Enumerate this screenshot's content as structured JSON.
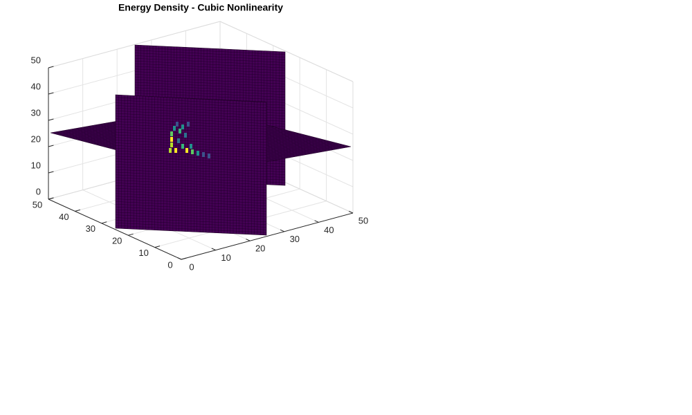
{
  "chart_data": {
    "type": "slice",
    "title": "Energy Density - Cubic Nonlinearity",
    "xlim": [
      0,
      50
    ],
    "xticks": [
      0,
      10,
      20,
      30,
      40,
      50
    ],
    "ylim": [
      0,
      50
    ],
    "yticks": [
      0,
      10,
      20,
      30,
      40,
      50
    ],
    "zlim": [
      0,
      50
    ],
    "zticks": [
      0,
      10,
      20,
      30,
      40,
      50
    ],
    "grid": true
  }
}
